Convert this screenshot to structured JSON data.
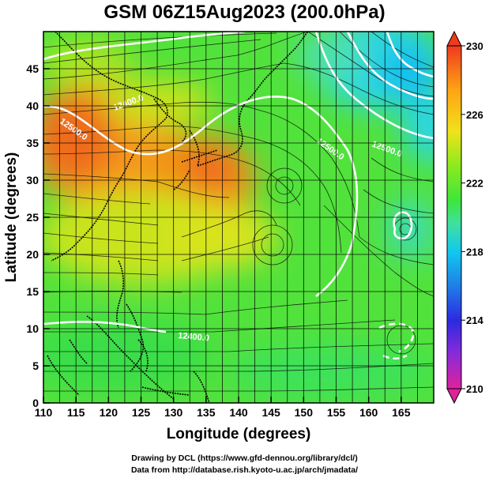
{
  "title": "GSM 06Z15Aug2023 (200.0hPa)",
  "axes": {
    "xlabel": "Longitude (degrees)",
    "ylabel": "Latitude  (degrees)",
    "x_ticks": [
      "110",
      "115",
      "120",
      "125",
      "130",
      "135",
      "140",
      "145",
      "150",
      "155",
      "160",
      "165"
    ],
    "y_ticks": [
      "0",
      "5",
      "10",
      "15",
      "20",
      "25",
      "30",
      "35",
      "40",
      "45"
    ]
  },
  "colorbar": {
    "ticks": [
      "210",
      "214",
      "218",
      "222",
      "226",
      "230"
    ],
    "colors": [
      "#e0219c",
      "#8a2bd8",
      "#2b2be0",
      "#1f7fe8",
      "#12c8ee",
      "#3fe0a0",
      "#3ee63a",
      "#8cea1e",
      "#f0e21a",
      "#ffa414",
      "#ef3a1e"
    ]
  },
  "contour_labels": [
    "12400.0",
    "12500.0",
    "12500.0",
    "12500.0",
    "12400.0"
  ],
  "footer": {
    "line1": "Drawing by DCL (https://www.gfd-dennou.org/library/dcl/)",
    "line2": "Data from http://database.rish.kyoto-u.ac.jp/arch/jmadata/"
  },
  "chart_data": {
    "type": "heatmap",
    "title": "GSM 06Z15Aug2023 (200.0hPa)",
    "xlabel": "Longitude (degrees)",
    "ylabel": "Latitude  (degrees)",
    "xlim": [
      110,
      170
    ],
    "ylim": [
      0,
      50
    ],
    "colorbar_range": [
      210,
      230
    ],
    "colorbar_ticks": [
      210,
      214,
      218,
      222,
      226,
      230
    ],
    "grid": true,
    "overlays": [
      "streamlines",
      "geopotential height contours (white)",
      "coastlines"
    ],
    "contour_labels": [
      "12400.0",
      "12500.0",
      "12500.0",
      "12500.0",
      "12400.0"
    ]
  }
}
